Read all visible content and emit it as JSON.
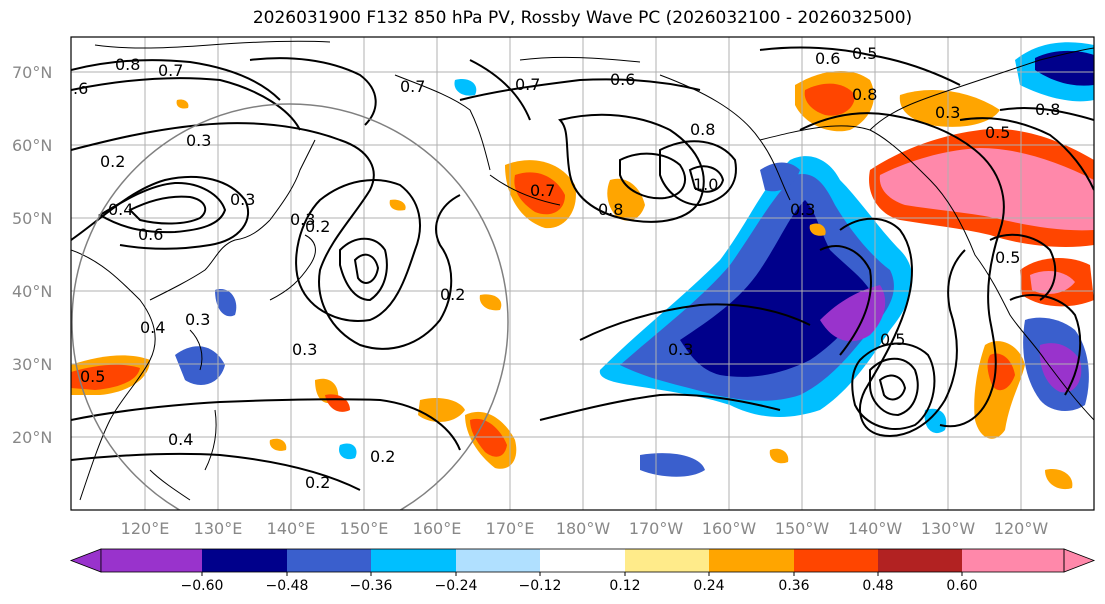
{
  "title": "2026031900 F132 850 hPa PV, Rossby Wave PC (2026032100 - 2026032500)",
  "lon_labels": [
    "120°E",
    "130°E",
    "140°E",
    "150°E",
    "160°E",
    "170°E",
    "180°W",
    "170°W",
    "160°W",
    "150°W",
    "140°W",
    "130°W",
    "120°W"
  ],
  "lat_labels": [
    "70°N",
    "60°N",
    "50°N",
    "40°N",
    "30°N",
    "20°N"
  ],
  "colorbar": {
    "ticks": [
      "−0.60",
      "−0.48",
      "−0.36",
      "−0.24",
      "−0.12",
      "0.12",
      "0.24",
      "0.36",
      "0.48",
      "0.60"
    ],
    "colors": [
      "#9933cc",
      "#00008b",
      "#3a5fcd",
      "#00bfff",
      "#b0e0ff",
      "#ffffff",
      "#ffeb8a",
      "#ffa500",
      "#ff4500",
      "#b22222",
      "#ff88aa"
    ]
  },
  "contour_labels": [
    "0.8",
    "0.7",
    ".6",
    "0.2",
    "0.3",
    "0.4",
    "0.6",
    "0.3",
    "0.7",
    "0.7",
    "0.6",
    "0.5",
    "0.6",
    "0.8",
    "0.8",
    "0.3",
    "0.2",
    "0.3",
    "0.5",
    "1.0",
    "0.7",
    "0.8",
    "0.3",
    "0.2",
    "0.3",
    "0.4",
    "0.5",
    "0.4",
    "0.2",
    "0.2",
    "0.3",
    "0.5",
    "0.3",
    "0.5",
    "0.8"
  ]
}
